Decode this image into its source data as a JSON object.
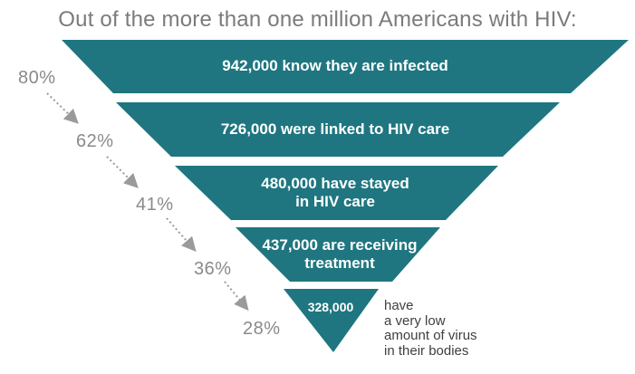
{
  "title": "Out of the more than one million Americans with HIV:",
  "colors": {
    "band": "#1f7680",
    "percent_text": "#8a8a8a",
    "arrow": "#9a9a9a"
  },
  "steps": [
    {
      "percent": "80%",
      "label_lines": [
        "942,000 know they are infected"
      ]
    },
    {
      "percent": "62%",
      "label_lines": [
        "726,000 were linked to HIV care"
      ]
    },
    {
      "percent": "41%",
      "label_lines": [
        "480,000 have stayed",
        "in HIV care"
      ]
    },
    {
      "percent": "36%",
      "label_lines": [
        "437,000 are receiving",
        "treatment"
      ]
    },
    {
      "percent": "28%",
      "label_lines": [
        "328,000"
      ]
    }
  ],
  "last_step_note": [
    "have",
    "a very low",
    "amount of virus",
    "in their bodies"
  ]
}
